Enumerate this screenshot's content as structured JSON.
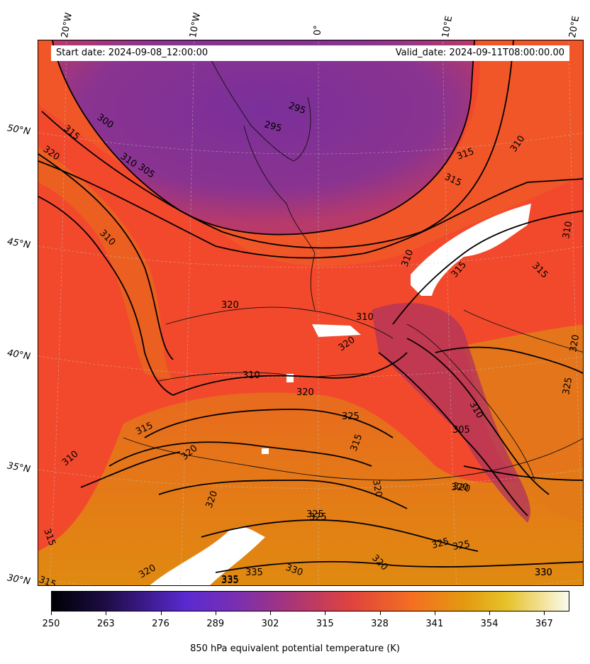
{
  "header": {
    "start_date": "Start date: 2024-09-08_12:00:00",
    "valid_date": "Valid_date: 2024-09-11T08:00:00.00"
  },
  "longitude_labels": [
    "20°W",
    "10°W",
    "0°",
    "10°E",
    "20°E"
  ],
  "latitude_labels": [
    "50°N",
    "45°N",
    "40°N",
    "35°N",
    "30°N"
  ],
  "contour_labels": [
    "295",
    "295",
    "300",
    "305",
    "310",
    "315",
    "320",
    "310",
    "315",
    "310",
    "315",
    "310",
    "315",
    "310",
    "320",
    "320",
    "310",
    "320",
    "310",
    "315",
    "320",
    "325",
    "305",
    "310",
    "315",
    "320",
    "325",
    "320",
    "325",
    "330",
    "335",
    "335",
    "330",
    "315",
    "315",
    "320",
    "325",
    "320",
    "310",
    "315",
    "320",
    "320",
    "325",
    "330",
    "335",
    "325",
    "320"
  ],
  "colorbar": {
    "ticks": [
      "250",
      "263",
      "276",
      "289",
      "302",
      "315",
      "328",
      "341",
      "354",
      "367"
    ],
    "label": "850 hPa equivalent potential temperature (K)",
    "range": [
      250,
      373
    ],
    "colormap": [
      "#000004",
      "#3b1a8a",
      "#5a2ad0",
      "#a8357a",
      "#e0433e",
      "#f47020",
      "#e39a10",
      "#e6c22a",
      "#fbfbf0"
    ]
  }
}
